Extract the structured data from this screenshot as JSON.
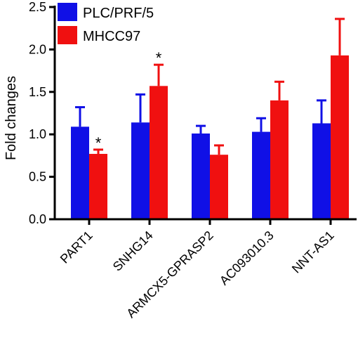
{
  "chart_data": {
    "type": "bar",
    "ylabel": "Fold changes",
    "ylim": [
      0,
      2.5
    ],
    "yticks": [
      "0.0",
      "0.5",
      "1.0",
      "1.5",
      "2.0",
      "2.5"
    ],
    "categories": [
      "PART1",
      "SNHG14",
      "ARMCX5-GPRASP2",
      "AC093010.3",
      "NNT-AS1"
    ],
    "series": [
      {
        "name": "PLC/PRF/5",
        "color": "#1010e6",
        "values": [
          1.09,
          1.14,
          1.01,
          1.03,
          1.13
        ],
        "errors": [
          0.23,
          0.33,
          0.09,
          0.16,
          0.27
        ]
      },
      {
        "name": "MHCC97",
        "color": "#f01010",
        "values": [
          0.77,
          1.57,
          0.76,
          1.4,
          1.93
        ],
        "errors": [
          0.05,
          0.25,
          0.11,
          0.22,
          0.43
        ]
      }
    ],
    "annotations": [
      {
        "text": "*",
        "category": 0,
        "series": 1
      },
      {
        "text": "*",
        "category": 1,
        "series": 1
      }
    ],
    "legend_position": "top-left",
    "grid": false,
    "error_bars": "upper"
  }
}
